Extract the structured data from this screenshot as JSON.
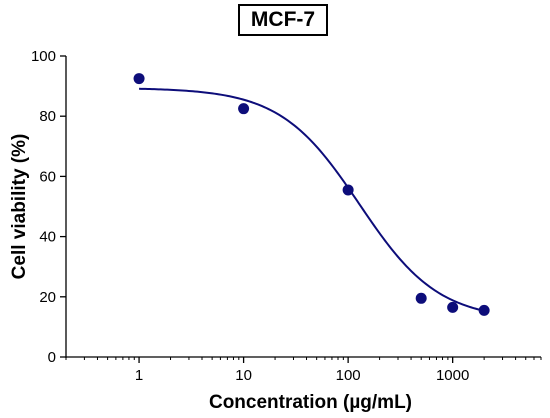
{
  "chart_data": {
    "type": "scatter",
    "title": "MCF-7",
    "xlabel": "Concentration (µg/mL)",
    "ylabel": "Cell viability (%)",
    "xscale": "log",
    "xlim": [
      0.2,
      7000
    ],
    "ylim": [
      0,
      100
    ],
    "x_ticks": [
      1,
      10,
      100,
      1000
    ],
    "x_tick_labels": [
      "1",
      "10",
      "100",
      "1000"
    ],
    "y_ticks": [
      0,
      20,
      40,
      60,
      80,
      100
    ],
    "y_tick_labels": [
      "0",
      "20",
      "40",
      "60",
      "80",
      "100"
    ],
    "grid": false,
    "points": [
      {
        "x": 1,
        "y": 92.5
      },
      {
        "x": 10,
        "y": 82.5
      },
      {
        "x": 100,
        "y": 55.5
      },
      {
        "x": 500,
        "y": 19.5
      },
      {
        "x": 1000,
        "y": 16.5
      },
      {
        "x": 2000,
        "y": 15.5
      }
    ],
    "fit_curve": {
      "model": "four-parameter logistic",
      "top": 89.4,
      "bottom": 12.2,
      "ic50": 128,
      "hill_slope": 1.15,
      "x_range": [
        1,
        2000
      ]
    },
    "colors": {
      "marker": "#0d0d7a",
      "curve": "#0d0d7a",
      "axis": "#000000"
    }
  }
}
